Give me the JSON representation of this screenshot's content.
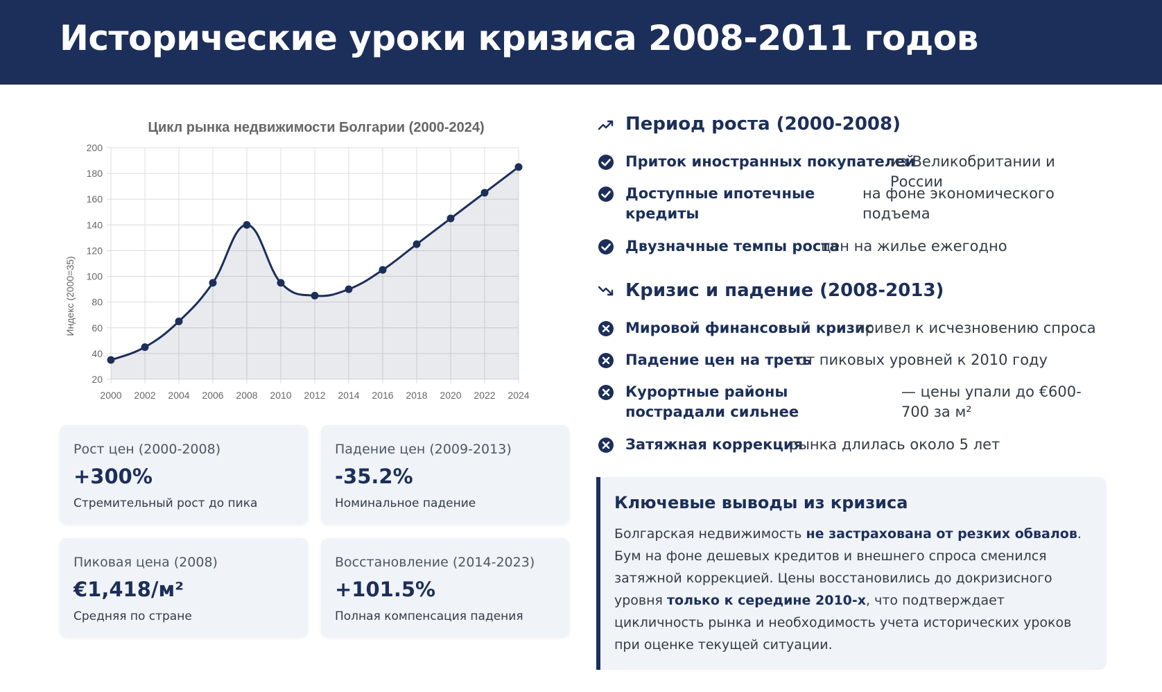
{
  "header": {
    "title": "Исторические уроки кризиса 2008-2011 годов"
  },
  "chart_data": {
    "type": "line",
    "title": "Цикл рынка недвижимости Болгарии (2000-2024)",
    "ylabel": "Индекс (2000=35)",
    "xlabel": "",
    "x": [
      "2000",
      "2002",
      "2004",
      "2006",
      "2008",
      "2010",
      "2012",
      "2014",
      "2016",
      "2018",
      "2020",
      "2022",
      "2024"
    ],
    "series": [
      {
        "values": [
          35,
          45,
          65,
          95,
          140,
          95,
          85,
          90,
          105,
          125,
          145,
          165,
          185
        ]
      }
    ],
    "ylim": [
      20,
      200
    ],
    "yticks": [
      20,
      40,
      60,
      80,
      100,
      120,
      140,
      160,
      180,
      200
    ],
    "grid": true,
    "fill": true,
    "colors": {
      "line": "#1c2f5a",
      "fill": "rgba(28,47,90,0.10)",
      "grid": "#dcdcdc"
    }
  },
  "stats": [
    {
      "label": "Рост цен (2000-2008)",
      "value": "+300%",
      "desc": "Стремительный рост до пика"
    },
    {
      "label": "Падение цен (2009-2013)",
      "value": "-35.2%",
      "desc": "Номинальное падение"
    },
    {
      "label": "Пиковая цена (2008)",
      "value": "€1,418/м²",
      "desc": "Средняя по стране"
    },
    {
      "label": "Восстановление (2014-2023)",
      "value": "+101.5%",
      "desc": "Полная компенсация падения"
    }
  ],
  "growth": {
    "icon": "trending-up-icon",
    "title": "Период роста (2000-2008)",
    "items": [
      {
        "icon": "check-circle-icon",
        "strong": "Приток иностранных покупателей",
        "rest": "из Великобритании и России"
      },
      {
        "icon": "check-circle-icon",
        "strong": "Доступные ипотечные кредиты",
        "rest": "на фоне экономического подъема"
      },
      {
        "icon": "check-circle-icon",
        "strong": "Двузначные темпы роста",
        "rest": "цен на жилье ежегодно"
      }
    ]
  },
  "crisis": {
    "icon": "trending-down-icon",
    "title": "Кризис и падение (2008-2013)",
    "items": [
      {
        "icon": "x-circle-icon",
        "strong": "Мировой финансовый кризис",
        "rest": "привел к исчезновению спроса"
      },
      {
        "icon": "x-circle-icon",
        "strong": "Падение цен на треть",
        "rest": "от пиковых уровней к 2010 году"
      },
      {
        "icon": "x-circle-icon",
        "strong": "Курортные районы пострадали сильнее",
        "rest": "— цены упали до €600-700 за м²"
      },
      {
        "icon": "x-circle-icon",
        "strong": "Затяжная коррекция",
        "rest": "рынка длилась около 5 лет"
      }
    ]
  },
  "conclusions": {
    "title": "Ключевые выводы из кризиса",
    "p1": "Болгарская недвижимость ",
    "b1": "не застрахована от резких обвалов",
    "p2": ". Бум на фоне дешевых кредитов и внешнего спроса сменился затяжной коррекцией. Цены восстановились до докризисного уровня ",
    "b2": "только к середине 2010-х",
    "p3": ", что подтверждает цикличность рынка и необходимость учета исторических уроков при оценке текущей ситуации."
  }
}
